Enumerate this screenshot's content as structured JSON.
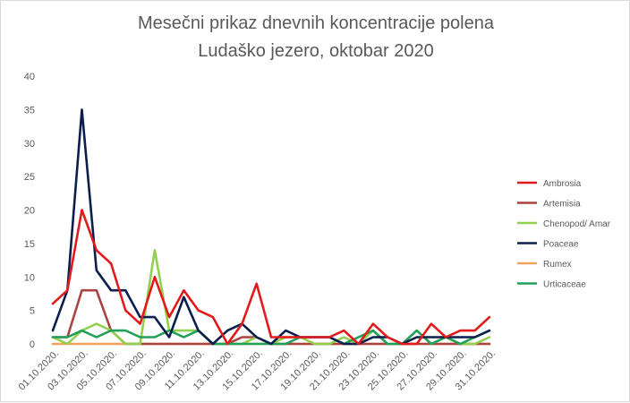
{
  "chart_data": {
    "type": "line",
    "title": "Mesečni prikaz dnevnih koncentracije polena",
    "subtitle": "Ludaško jezero, oktobar 2020",
    "xlabel": "",
    "ylabel": "",
    "ylim": [
      0,
      40
    ],
    "yticks": [
      0,
      5,
      10,
      15,
      20,
      25,
      30,
      35,
      40
    ],
    "grid": false,
    "legend_position": "right",
    "x": [
      "01.10.2020.",
      "02.10.2020.",
      "03.10.2020.",
      "04.10.2020.",
      "05.10.2020.",
      "06.10.2020.",
      "07.10.2020.",
      "08.10.2020.",
      "09.10.2020.",
      "10.10.2020.",
      "11.10.2020.",
      "12.10.2020.",
      "13.10.2020.",
      "14.10.2020.",
      "15.10.2020.",
      "16.10.2020.",
      "17.10.2020.",
      "18.10.2020.",
      "19.10.2020.",
      "20.10.2020.",
      "21.10.2020.",
      "22.10.2020.",
      "23.10.2020.",
      "24.10.2020.",
      "25.10.2020.",
      "26.10.2020.",
      "27.10.2020.",
      "28.10.2020.",
      "29.10.2020.",
      "30.10.2020.",
      "31.10.2020."
    ],
    "x_tick_labels": [
      "01.10.2020.",
      "03.10.2020.",
      "05.10.2020.",
      "07.10.2020.",
      "09.10.2020.",
      "11.10.2020.",
      "13.10.2020.",
      "15.10.2020.",
      "17.10.2020.",
      "19.10.2020.",
      "21.10.2020.",
      "23.10.2020.",
      "25.10.2020.",
      "27.10.2020.",
      "29.10.2020.",
      "31.10.2020."
    ],
    "series": [
      {
        "name": "Ambrosia",
        "color": "#e31a1c",
        "values": [
          6,
          8,
          20,
          14,
          12,
          5,
          3,
          10,
          4,
          8,
          5,
          4,
          0,
          3,
          9,
          1,
          1,
          1,
          1,
          1,
          2,
          0,
          3,
          1,
          0,
          0,
          3,
          1,
          2,
          2,
          4
        ]
      },
      {
        "name": "Artemisia",
        "color": "#a94442",
        "values": [
          1,
          1,
          8,
          8,
          2,
          0,
          0,
          0,
          0,
          0,
          0,
          0,
          0,
          1,
          1,
          0,
          0,
          0,
          0,
          0,
          0,
          0,
          0,
          0,
          0,
          0,
          0,
          0,
          0,
          0,
          0
        ]
      },
      {
        "name": "Chenopod/ Amar",
        "color": "#92d050",
        "values": [
          1,
          0,
          2,
          3,
          2,
          0,
          0,
          14,
          2,
          2,
          2,
          0,
          0,
          0,
          1,
          0,
          1,
          1,
          0,
          0,
          1,
          0,
          2,
          0,
          0,
          2,
          0,
          1,
          0,
          0,
          1
        ]
      },
      {
        "name": "Poaceae",
        "color": "#0b1f4f",
        "values": [
          2,
          8,
          35,
          11,
          8,
          8,
          4,
          4,
          1,
          7,
          2,
          0,
          2,
          3,
          1,
          0,
          2,
          1,
          1,
          1,
          0,
          0,
          1,
          1,
          0,
          1,
          1,
          1,
          1,
          1,
          2
        ]
      },
      {
        "name": "Rumex",
        "color": "#f4a25b",
        "values": [
          0,
          0,
          0,
          0,
          0,
          0,
          0,
          0,
          0,
          0,
          0,
          0,
          0,
          0,
          0,
          0,
          0,
          0,
          0,
          0,
          0,
          0,
          0,
          0,
          0,
          0,
          0,
          0,
          0,
          0,
          0
        ]
      },
      {
        "name": "Urticaceae",
        "color": "#21a05a",
        "values": [
          1,
          1,
          2,
          1,
          2,
          2,
          1,
          1,
          2,
          1,
          2,
          0,
          0,
          0,
          0,
          0,
          0,
          1,
          1,
          1,
          0,
          1,
          2,
          0,
          0,
          2,
          0,
          1,
          0,
          1,
          2
        ]
      }
    ]
  }
}
